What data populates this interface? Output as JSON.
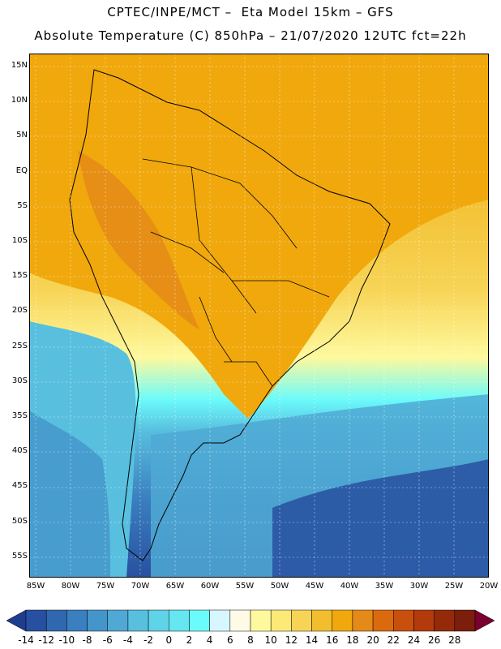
{
  "header": {
    "title_line1": "CPTEC/INPE/MCT –  Eta Model 15km – GFS",
    "title_line2": "Absolute Temperature (C) 850hPa – 21/07/2020 12UTC fct=22h"
  },
  "axes": {
    "lat_labels": [
      "15N",
      "10N",
      "5N",
      "EQ",
      "5S",
      "10S",
      "15S",
      "20S",
      "25S",
      "30S",
      "35S",
      "40S",
      "45S",
      "50S",
      "55S"
    ],
    "lon_labels": [
      "85W",
      "80W",
      "75W",
      "70W",
      "65W",
      "60W",
      "55W",
      "50W",
      "45W",
      "40W",
      "35W",
      "30W",
      "25W",
      "20W"
    ]
  },
  "colorbar": {
    "labels": [
      "-14",
      "-12",
      "-10",
      "-8",
      "-6",
      "-4",
      "-2",
      "0",
      "2",
      "4",
      "6",
      "8",
      "10",
      "12",
      "14",
      "16",
      "18",
      "20",
      "22",
      "24",
      "26",
      "28"
    ],
    "colors": [
      "#1f3d8f",
      "#2850a0",
      "#3068b0",
      "#3a7fbf",
      "#4495c9",
      "#4fa9d4",
      "#58bfdf",
      "#5fd3e8",
      "#66e6f1",
      "#6cfbfb",
      "#d6f7ff",
      "#fefae6",
      "#fef99e",
      "#fde978",
      "#f7d456",
      "#f2be2e",
      "#f0a80c",
      "#e48a18",
      "#db6a0f",
      "#c8500c",
      "#b33a0b",
      "#952a0a",
      "#7c1e0c",
      "#7a0030"
    ]
  },
  "legend_colors": {
    "ocean_warm": "#f5c643",
    "land_warm": "#f0a80c",
    "land_hot": "#e48a18",
    "cool_shelf": "#66e6f1",
    "cold_sea": "#4fa9d4",
    "very_cold": "#3068b0"
  }
}
